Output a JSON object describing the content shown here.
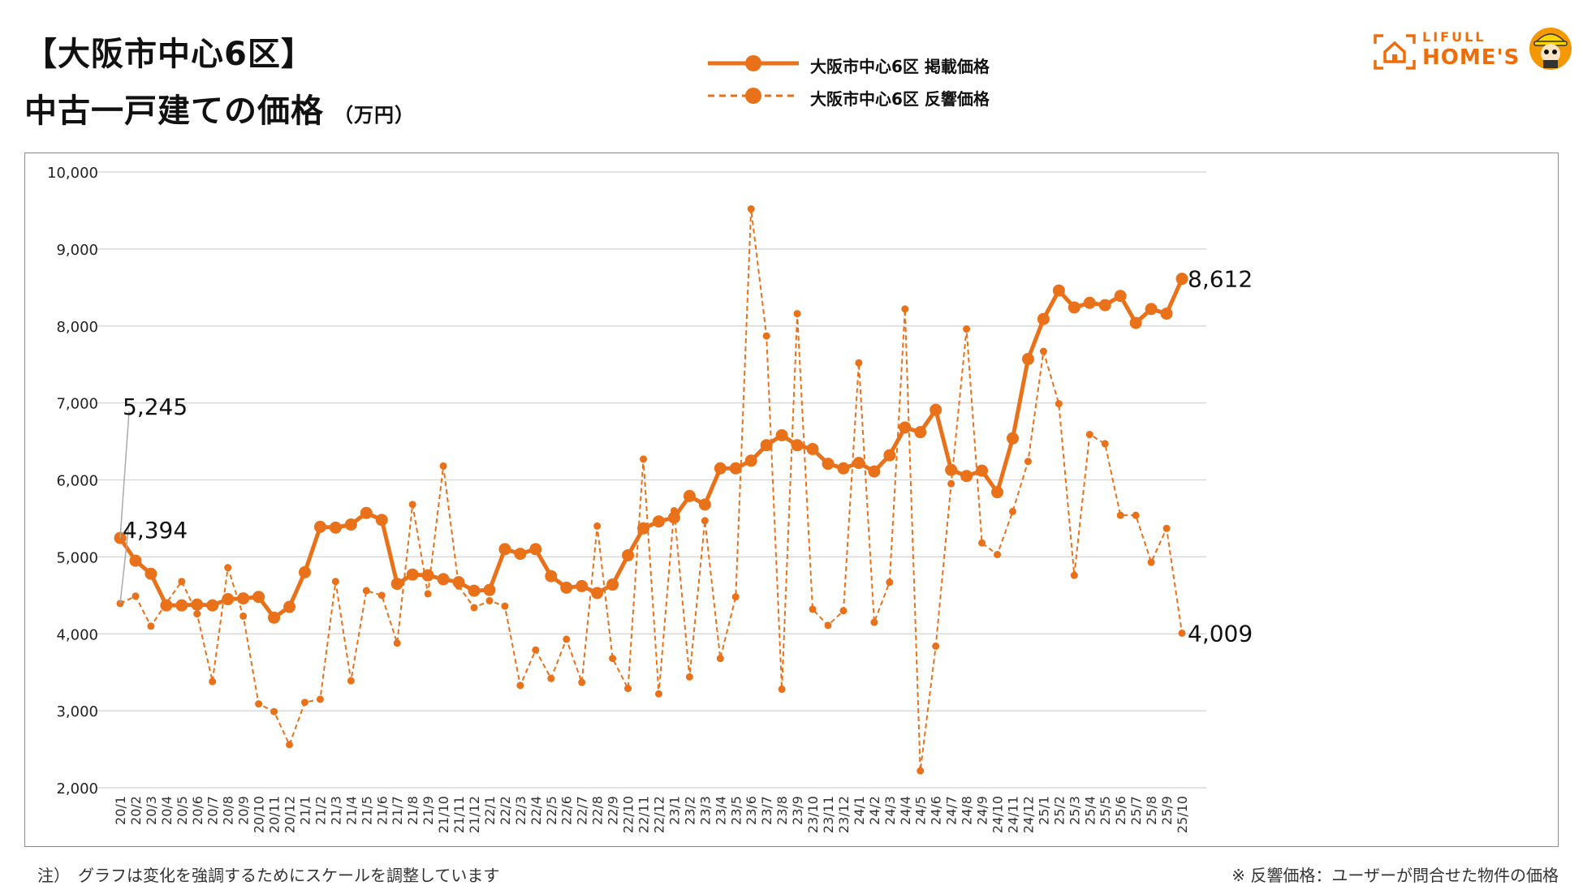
{
  "title": {
    "line1": "【大阪市中心6区】",
    "line2": "中古一戸建ての価格",
    "unit": "（万円）"
  },
  "legend": {
    "listing_label": "大阪市中心6区 掲載価格",
    "response_label": "大阪市中心6区 反響価格"
  },
  "logo": {
    "top_text": "LIFULL",
    "bottom_text": "HOME'S",
    "house_icon": "house-icon",
    "mascot_icon": "mascot-icon"
  },
  "colors": {
    "accent": "#E8711A",
    "grid": "#D9D9D9",
    "frame": "#8C8C8C"
  },
  "notes": {
    "left": "注）　グラフは変化を強調するためにスケールを調整しています",
    "right": "※ 反響価格：ユーザーが問合せた物件の価格"
  },
  "chart_data": {
    "type": "line",
    "title": "",
    "xlabel": "",
    "ylabel": "",
    "ylim": [
      2000,
      10000
    ],
    "yticks": [
      2000,
      3000,
      4000,
      5000,
      6000,
      7000,
      8000,
      9000,
      10000
    ],
    "ytick_labels": [
      "2,000",
      "3,000",
      "4,000",
      "5,000",
      "6,000",
      "7,000",
      "8,000",
      "9,000",
      "10,000"
    ],
    "grid": true,
    "legend_position": "top-center",
    "categories": [
      "20/1",
      "20/2",
      "20/3",
      "20/4",
      "20/5",
      "20/6",
      "20/7",
      "20/8",
      "20/9",
      "20/10",
      "20/11",
      "20/12",
      "21/1",
      "21/2",
      "21/3",
      "21/4",
      "21/5",
      "21/6",
      "21/7",
      "21/8",
      "21/9",
      "21/10",
      "21/11",
      "21/12",
      "22/1",
      "22/2",
      "22/3",
      "22/4",
      "22/5",
      "22/6",
      "22/7",
      "22/8",
      "22/9",
      "22/10",
      "22/11",
      "22/12",
      "23/1",
      "23/2",
      "23/3",
      "23/4",
      "23/5",
      "23/6",
      "23/7",
      "23/8",
      "23/9",
      "23/10",
      "23/11",
      "23/12",
      "24/1",
      "24/2",
      "24/3",
      "24/4",
      "24/5",
      "24/6",
      "24/7",
      "24/8",
      "24/9",
      "24/10",
      "24/11",
      "24/12",
      "25/1",
      "25/2",
      "25/3",
      "25/4",
      "25/5",
      "25/6",
      "25/7",
      "25/8",
      "25/9",
      "25/10"
    ],
    "series": [
      {
        "name": "大阪市中心6区 掲載価格",
        "style": "solid",
        "values": [
          5245,
          4950,
          4780,
          4370,
          4370,
          4380,
          4370,
          4450,
          4460,
          4480,
          4210,
          4350,
          4800,
          5390,
          5380,
          5420,
          5570,
          5480,
          4650,
          4770,
          4760,
          4710,
          4670,
          4560,
          4570,
          5100,
          5040,
          5100,
          4750,
          4600,
          4620,
          4530,
          4640,
          5020,
          5370,
          5460,
          5510,
          5790,
          5680,
          6150,
          6150,
          6250,
          6450,
          6580,
          6450,
          6400,
          6210,
          6150,
          6220,
          6110,
          6320,
          6680,
          6620,
          6910,
          6130,
          6050,
          6120,
          5840,
          6540,
          7570,
          8090,
          8460,
          8240,
          8300,
          8270,
          8390,
          8040,
          8220,
          8160,
          8612
        ]
      },
      {
        "name": "大阪市中心6区 反響価格",
        "style": "dashed",
        "values": [
          4394,
          4490,
          4100,
          4400,
          4680,
          4260,
          3380,
          4860,
          4230,
          3090,
          2990,
          2560,
          3110,
          3150,
          4680,
          3390,
          4560,
          4500,
          3880,
          5680,
          4520,
          6180,
          4620,
          4340,
          4430,
          4360,
          3330,
          3790,
          3420,
          3930,
          3370,
          5400,
          3680,
          3290,
          6270,
          3220,
          5600,
          3440,
          5470,
          3680,
          4480,
          9520,
          7870,
          3280,
          8160,
          4320,
          4110,
          4300,
          7520,
          4150,
          4670,
          8220,
          2220,
          3840,
          5950,
          7960,
          5180,
          5030,
          5590,
          6240,
          7670,
          6990,
          4760,
          6590,
          6470,
          5540,
          5540,
          4930,
          5370,
          4009
        ]
      }
    ],
    "annotations": {
      "listing_first": "5,245",
      "response_first": "4,394",
      "listing_last": "8,612",
      "response_last": "4,009"
    }
  }
}
